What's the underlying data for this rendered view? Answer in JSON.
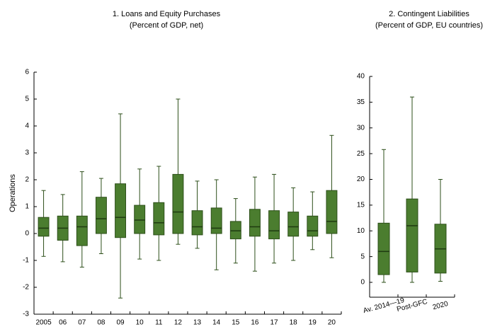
{
  "chart_data": [
    {
      "type": "box",
      "title": "1. Loans and Equity Purchases",
      "subtitle": "(Percent of GDP, net)",
      "y_label": "Operations",
      "categories": [
        "2005",
        "06",
        "07",
        "08",
        "09",
        "10",
        "11",
        "12",
        "13",
        "14",
        "15",
        "16",
        "17",
        "18",
        "19",
        "20"
      ],
      "color": "#4b7d2f",
      "low": [
        -0.85,
        -1.05,
        -1.25,
        -0.75,
        -2.4,
        -0.95,
        -1.0,
        -0.4,
        -0.55,
        -1.35,
        -1.1,
        -1.4,
        -1.1,
        -1.0,
        -0.6,
        -0.9
      ],
      "q1": [
        -0.1,
        -0.25,
        -0.45,
        0,
        -0.15,
        0,
        -0.05,
        0,
        -0.05,
        0,
        -0.2,
        -0.1,
        -0.2,
        -0.1,
        -0.1,
        0
      ],
      "median": [
        0.2,
        0.2,
        0.25,
        0.55,
        0.6,
        0.5,
        0.4,
        0.8,
        0.25,
        0.2,
        0.1,
        0.25,
        0.1,
        0.25,
        0.1,
        0.45
      ],
      "q3": [
        0.6,
        0.65,
        0.65,
        1.35,
        1.85,
        1.05,
        1.15,
        2.2,
        0.85,
        0.95,
        0.45,
        0.9,
        0.85,
        0.8,
        0.65,
        1.6
      ],
      "high": [
        1.6,
        1.45,
        2.3,
        2.05,
        4.45,
        2.4,
        2.5,
        5.0,
        1.95,
        2.0,
        1.3,
        2.1,
        2.2,
        1.7,
        1.55,
        3.65
      ],
      "ylim": [
        -3,
        6
      ],
      "yticks": [
        -3,
        -2,
        -1,
        0,
        1,
        2,
        3,
        4,
        5,
        6
      ]
    },
    {
      "type": "box",
      "title": "2. Contingent Liabilities",
      "subtitle": "(Percent of GDP, EU countries)",
      "categories": [
        "Av. 2014—19",
        "Post-GFC",
        "2020"
      ],
      "color": "#4b7d2f",
      "low": [
        0,
        0,
        0.2
      ],
      "q1": [
        1.5,
        2,
        1.8
      ],
      "median": [
        6,
        11,
        6.5
      ],
      "q3": [
        11.5,
        16.2,
        11.3
      ],
      "high": [
        25.8,
        36,
        20
      ],
      "ylim": [
        0,
        40
      ],
      "yticks": [
        0,
        5,
        10,
        15,
        20,
        25,
        30,
        35,
        40
      ]
    }
  ]
}
